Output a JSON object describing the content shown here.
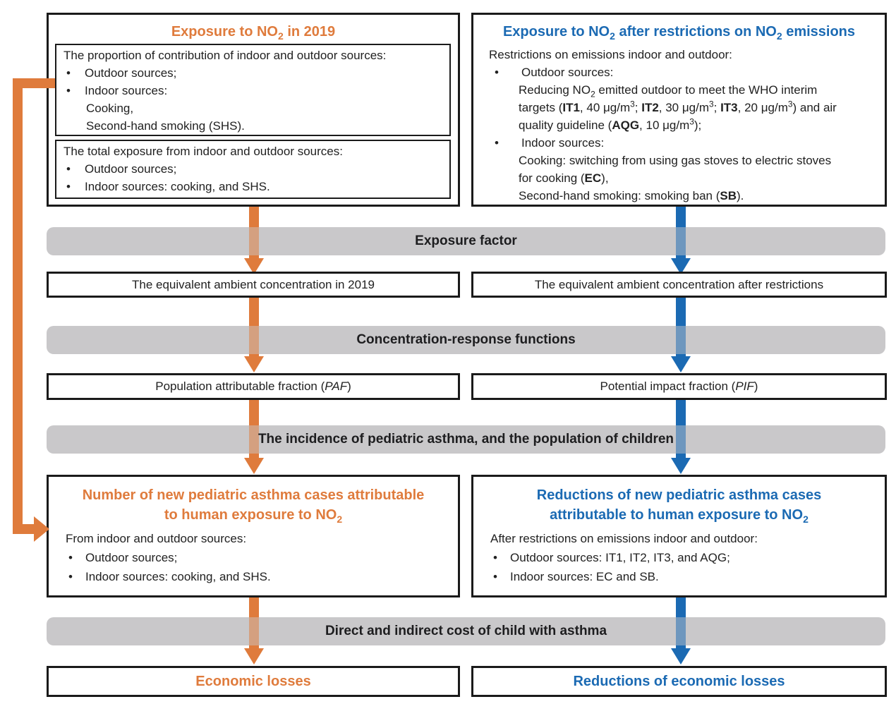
{
  "colors": {
    "orange": "#DF7B3C",
    "blue": "#1B6AB3",
    "bar_gray": "#C9C8CA",
    "border": "#1A1A1A",
    "text": "#212121"
  },
  "bars": {
    "exposure_factor": "Exposure factor",
    "crf": "Concentration-response functions",
    "incidence": "The incidence of pediatric asthma, and the population of children",
    "cost": "Direct and indirect cost of child with asthma"
  },
  "left": {
    "top": {
      "title_html": "Exposure to NO<sub>2</sub> in 2019",
      "box1": {
        "intro": "The proportion of contribution of indoor and outdoor sources:",
        "b1": "Outdoor sources;",
        "b2": "Indoor sources:",
        "s1": "Cooking,",
        "s2": "Second-hand smoking (SHS)."
      },
      "box2": {
        "intro": "The total exposure from indoor and outdoor sources:",
        "b1": "Outdoor sources;",
        "b2": "Indoor sources: cooking, and SHS."
      }
    },
    "eq": "The equivalent ambient concentration in 2019",
    "fraction_html": "Population attributable fraction (<i>PAF</i>)",
    "cases": {
      "title_html": "Number of new pediatric asthma cases attributable<br>to human exposure to NO<sub>2</sub>",
      "intro": "From indoor and outdoor sources:",
      "b1": "Outdoor sources;",
      "b2": "Indoor sources: cooking, and SHS."
    },
    "economic": "Economic losses"
  },
  "right": {
    "top": {
      "title_html": "Exposure to NO<sub>2</sub> after restrictions on NO<sub>2</sub> emissions",
      "intro": "Restrictions on emissions indoor and outdoor:",
      "b1": "Outdoor sources:",
      "s1_html": "Reducing NO<sub>2</sub> emitted outdoor to meet the WHO interim<br>targets (<b>IT1</b>, 40 μg/m<sup>3</sup>; <b>IT2</b>, 30 μg/m<sup>3</sup>; <b>IT3</b>, 20 μg/m<sup>3</sup>) and air<br>quality guideline (<b>AQG</b>, 10 μg/m<sup>3</sup>);",
      "b2": "Indoor sources:",
      "s2_html": "Cooking: switching from using gas stoves to electric stoves<br>for cooking (<b>EC</b>),",
      "s3_html": "Second-hand smoking: smoking ban (<b>SB</b>)."
    },
    "eq": "The equivalent ambient concentration after restrictions",
    "fraction_html": "Potential impact fraction (<i>PIF</i>)",
    "cases": {
      "title_html": "Reductions of new pediatric asthma cases<br>attributable to human exposure to NO<sub>2</sub>",
      "intro": "After restrictions on emissions indoor and outdoor:",
      "b1": "Outdoor sources: IT1, IT2, IT3, and AQG;",
      "b2": "Indoor sources: EC and SB."
    },
    "economic": "Reductions of economic losses"
  }
}
